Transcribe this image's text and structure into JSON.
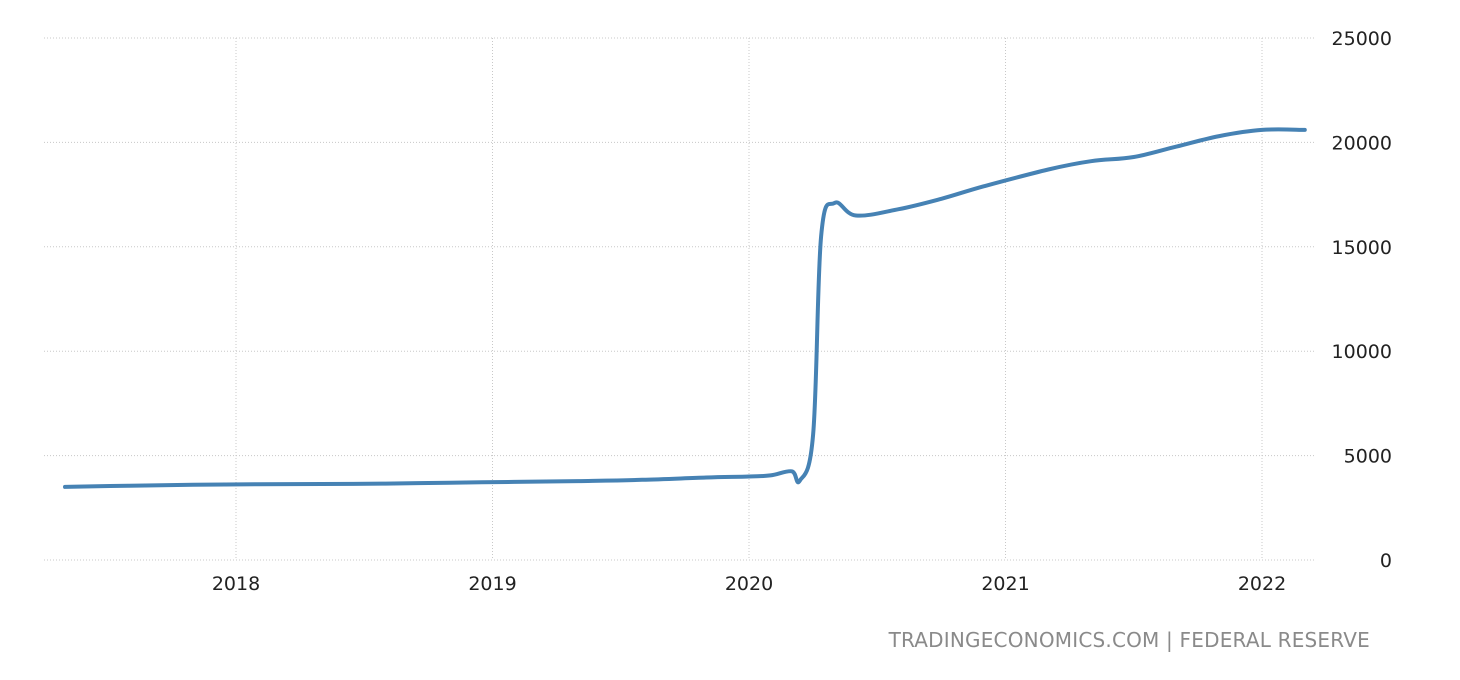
{
  "source_label": "TRADINGECONOMICS.COM | FEDERAL RESERVE",
  "colors": {
    "line": "#4682b4",
    "grid": "#c8c8c8",
    "text": "#222222",
    "source": "#8a8a8a"
  },
  "chart_data": {
    "type": "line",
    "title": "",
    "xlabel": "",
    "ylabel": "",
    "ylim": [
      0,
      25000
    ],
    "xlim": [
      "2017-05",
      "2022-05"
    ],
    "grid": true,
    "y_axis_side": "right",
    "x_ticks": [
      "2018",
      "2019",
      "2020",
      "2021",
      "2022"
    ],
    "y_ticks": [
      "0",
      "5000",
      "10000",
      "15000",
      "20000",
      "25000"
    ],
    "series": [
      {
        "color": "#4682b4",
        "points": [
          {
            "x": "2017-05",
            "y": 3500
          },
          {
            "x": "2017-08",
            "y": 3560
          },
          {
            "x": "2017-11",
            "y": 3600
          },
          {
            "x": "2018-02",
            "y": 3630
          },
          {
            "x": "2018-05",
            "y": 3640
          },
          {
            "x": "2018-08",
            "y": 3660
          },
          {
            "x": "2018-11",
            "y": 3700
          },
          {
            "x": "2019-02",
            "y": 3740
          },
          {
            "x": "2019-05",
            "y": 3780
          },
          {
            "x": "2019-08",
            "y": 3840
          },
          {
            "x": "2019-11",
            "y": 3950
          },
          {
            "x": "2020-01",
            "y": 4000
          },
          {
            "x": "2020-02",
            "y": 4050
          },
          {
            "x": "2020-03",
            "y": 4250
          },
          {
            "x": "2020-03",
            "y": 3800
          },
          {
            "x": "2020-04",
            "y": 6000
          },
          {
            "x": "2020-04",
            "y": 15500
          },
          {
            "x": "2020-05",
            "y": 17100
          },
          {
            "x": "2020-06",
            "y": 16500
          },
          {
            "x": "2020-08",
            "y": 16800
          },
          {
            "x": "2020-10",
            "y": 17300
          },
          {
            "x": "2020-12",
            "y": 17900
          },
          {
            "x": "2021-03",
            "y": 18700
          },
          {
            "x": "2021-05",
            "y": 19100
          },
          {
            "x": "2021-07",
            "y": 19300
          },
          {
            "x": "2021-09",
            "y": 19800
          },
          {
            "x": "2021-11",
            "y": 20300
          },
          {
            "x": "2022-01",
            "y": 20600
          },
          {
            "x": "2022-03",
            "y": 20600
          }
        ]
      }
    ]
  }
}
